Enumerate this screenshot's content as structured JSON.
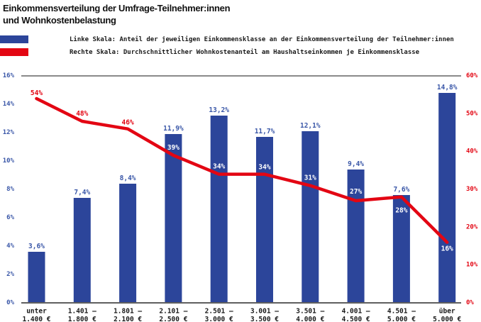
{
  "title": {
    "line1": "Einkommensverteilung der Umfrage-Teilnehmer:innen",
    "line2": "und Wohnkostenbelastung"
  },
  "legend": {
    "items": [
      {
        "label": "Linke Skala: Anteil der jeweiligen Einkommensklasse an der Einkommensverteilung der Teilnehmer:innen",
        "color": "#2c459a"
      },
      {
        "label": "Rechte Skala: Durchschnittlicher Wohnkostenanteil am Haushaltseinkommen je Einkommensklasse",
        "color": "#e30613"
      }
    ]
  },
  "chart_data": {
    "type": "bar",
    "subtype": "bar-and-line-dual-axis",
    "title": "Einkommensverteilung der Umfrage-Teilnehmer:innen und Wohnkostenbelastung",
    "categories": [
      "unter 1.400 €",
      "1.401 – 1.800 €",
      "1.801 – 2.100 €",
      "2.101 – 2.500 €",
      "2.501 – 3.000 €",
      "3.001 – 3.500 €",
      "3.501 – 4.000 €",
      "4.001 – 4.500 €",
      "4.501 – 5.000 €",
      "über 5.000 €"
    ],
    "category_lines": [
      [
        "unter",
        "1.400 €"
      ],
      [
        "1.401 –",
        "1.800 €"
      ],
      [
        "1.801 –",
        "2.100 €"
      ],
      [
        "2.101 –",
        "2.500 €"
      ],
      [
        "2.501 –",
        "3.000 €"
      ],
      [
        "3.001 –",
        "3.500 €"
      ],
      [
        "3.501 –",
        "4.000 €"
      ],
      [
        "4.001 –",
        "4.500 €"
      ],
      [
        "4.501 –",
        "5.000 €"
      ],
      [
        "über",
        "5.000 €"
      ]
    ],
    "series": [
      {
        "name": "Linke Skala: Anteil der jeweiligen Einkommensklasse an der Einkommensverteilung der Teilnehmer:innen",
        "type": "bar",
        "axis": "left",
        "color": "#2c459a",
        "values": [
          3.6,
          7.4,
          8.4,
          11.9,
          13.2,
          11.7,
          12.1,
          9.4,
          7.6,
          14.8
        ],
        "labels": [
          "3,6%",
          "7,4%",
          "8,4%",
          "11,9%",
          "13,2%",
          "11,7%",
          "12,1%",
          "9,4%",
          "7,6%",
          "14,8%"
        ]
      },
      {
        "name": "Rechte Skala: Durchschnittlicher Wohnkostenanteil am Haushaltseinkommen je Einkommensklasse",
        "type": "line",
        "axis": "right",
        "color": "#e30613",
        "values": [
          54,
          48,
          46,
          39,
          34,
          34,
          31,
          27,
          28,
          16
        ],
        "labels": [
          "54%",
          "48%",
          "46%",
          "39%",
          "34%",
          "34%",
          "31%",
          "27%",
          "28%",
          "16%"
        ]
      }
    ],
    "left_axis": {
      "min": 0,
      "max": 16,
      "step": 2,
      "ticks": [
        "0%",
        "2%",
        "4%",
        "6%",
        "8%",
        "10%",
        "12%",
        "14%",
        "16%"
      ],
      "color": "#3a57a8"
    },
    "right_axis": {
      "min": 0,
      "max": 60,
      "step": 10,
      "ticks": [
        "0%",
        "10%",
        "20%",
        "30%",
        "40%",
        "50%",
        "60%"
      ],
      "color": "#e30613"
    },
    "grid": "top-line-and-baseline-only",
    "legend_position": "top-left",
    "layout": {
      "bar_label_color": "#3a57a8",
      "x_label_color": "#1a1a1a",
      "gridline_color": "#8a8a8a",
      "axisline_color": "#5f5f5f",
      "line_label_colors": [
        "#e30613",
        "#e30613",
        "#e30613",
        "#ffffff",
        "#ffffff",
        "#ffffff",
        "#ffffff",
        "#ffffff",
        "#ffffff",
        "#ffffff"
      ],
      "line_label_dy": [
        -5,
        -8,
        -6,
        -8,
        -8,
        -7,
        -8,
        -10,
        22,
        12
      ]
    }
  }
}
